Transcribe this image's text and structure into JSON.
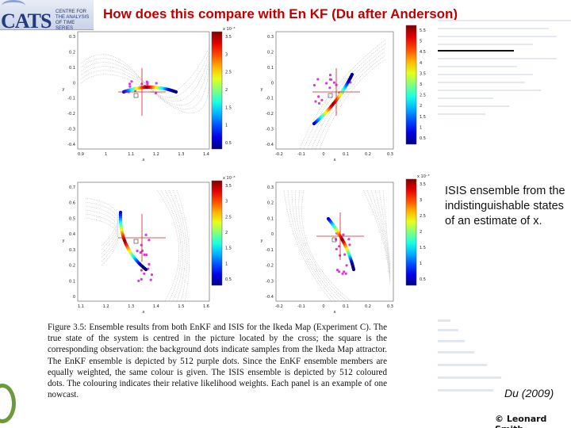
{
  "header": {
    "title": "How does this compare with En KF (Du after Anderson)"
  },
  "logo": {
    "mark": "CATS",
    "subtitle": "CENTRE FOR THE ANALYSIS OF TIME SERIES"
  },
  "figure": {
    "panels": [
      {
        "id": "top-left",
        "y_ticks": [
          "0.3",
          "0.2",
          "0.1",
          "0",
          "-0.1",
          "-0.2",
          "-0.3",
          "-0.4"
        ],
        "x_ticks": [
          "0.9",
          "1",
          "1.1",
          "1.2",
          "1.3",
          "1.4"
        ],
        "colorbar_exponent": "x 10⁻³",
        "colorbar_ticks": [
          "3.5",
          "3",
          "2.5",
          "2",
          "1.5",
          "1",
          "0.5"
        ]
      },
      {
        "id": "top-right",
        "y_ticks": [
          "0.3",
          "0.2",
          "0.1",
          "0",
          "-0.1",
          "-0.2",
          "-0.3",
          "-0.4"
        ],
        "x_ticks": [
          "-0.2",
          "-0.1",
          "0",
          "0.1",
          "0.2",
          "0.3"
        ],
        "colorbar_exponent": "x 10⁻³",
        "colorbar_ticks": [
          "5.5",
          "5",
          "4.5",
          "4",
          "3.5",
          "3",
          "2.5",
          "2",
          "1.5",
          "1",
          "0.5"
        ]
      },
      {
        "id": "bottom-left",
        "y_ticks": [
          "0.7",
          "0.6",
          "0.5",
          "0.4",
          "0.3",
          "0.2",
          "0.1",
          "0"
        ],
        "x_ticks": [
          "1.1",
          "1.2",
          "1.3",
          "1.4",
          "1.5",
          "1.6"
        ],
        "colorbar_exponent": "x 10⁻³",
        "colorbar_ticks": [
          "3.5",
          "3",
          "2.5",
          "2",
          "1.5",
          "1",
          "0.5"
        ]
      },
      {
        "id": "bottom-right",
        "y_ticks": [
          "0.3",
          "0.2",
          "0.1",
          "0",
          "-0.1",
          "-0.2",
          "-0.3",
          "-0.4"
        ],
        "x_ticks": [
          "-0.2",
          "-0.1",
          "0",
          "0.1",
          "0.2",
          "0.3"
        ],
        "colorbar_exponent": "x 10⁻³",
        "colorbar_ticks": [
          "3.5",
          "3",
          "2.5",
          "2",
          "1.5",
          "1",
          "0.5"
        ]
      }
    ],
    "caption": "Figure 3.5: Ensemble results from both EnKF and ISIS for the Ikeda Map (Experiment C). The true state of the system is centred in the picture located by the cross; the square is the corresponding observation: the background dots indicate samples from the Ikeda Map attractor. The EnKF ensemble is depicted by 512 purple dots. Since the EnKF ensemble members are equally weighted, the same colour is given. The ISIS ensemble is depicted by 512 coloured dots. The colouring indicates their relative likelihood weights. Each panel is an example of one nowcast."
  },
  "side_note": "ISIS ensemble from the indistinguishable states of an estimate of x.",
  "citation": "Du (2009)",
  "footer": {
    "copyright": "© Leonard Smith"
  },
  "colors": {
    "title": "#c00000",
    "crosshair": "#cc2222",
    "enkf": "#d93bd9",
    "background_dots": "#b8b8b8"
  }
}
